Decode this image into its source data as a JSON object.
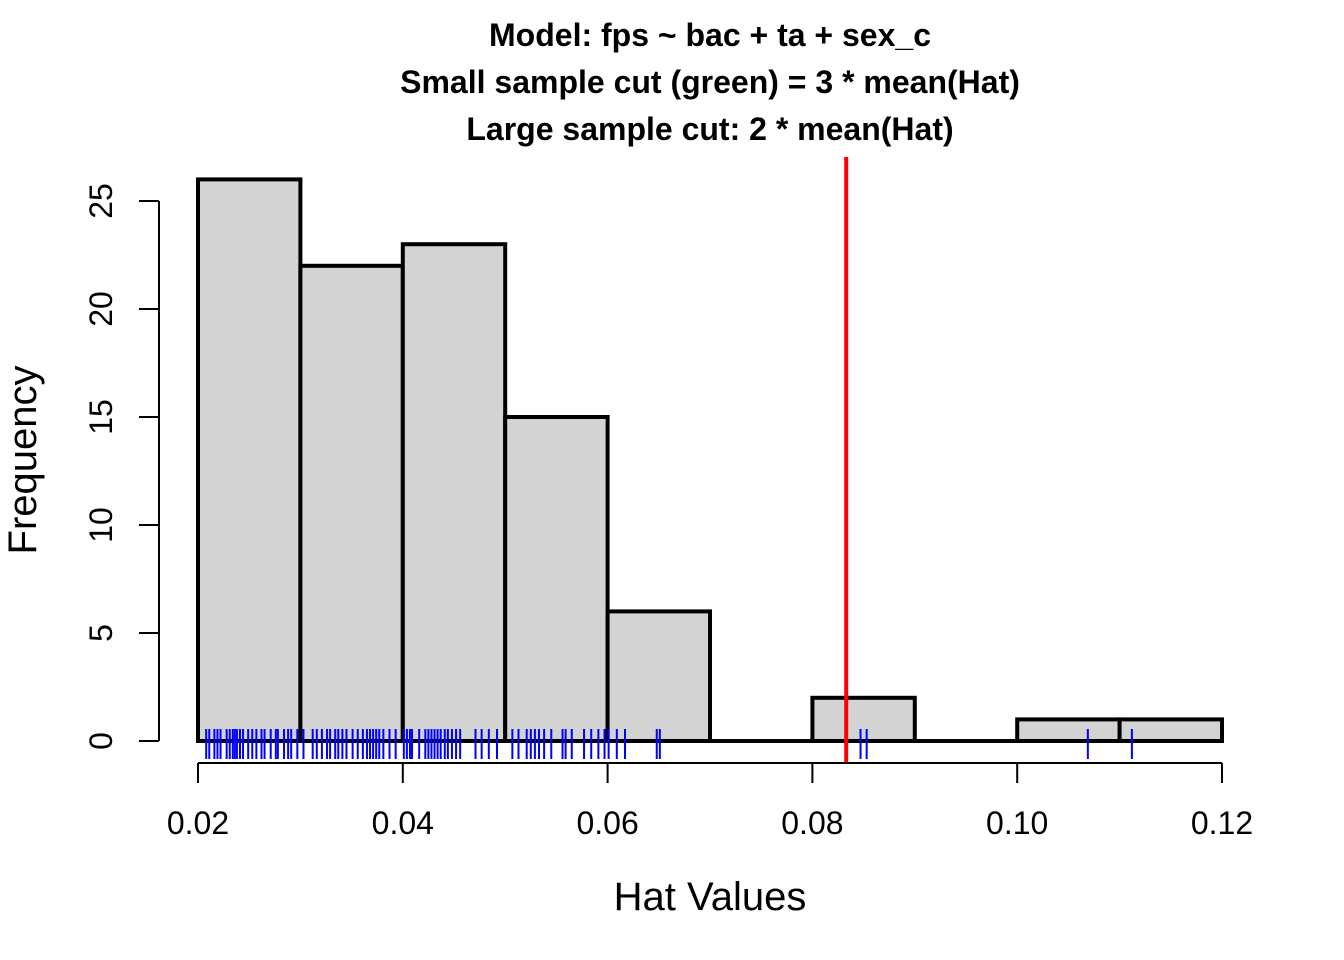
{
  "chart_data": {
    "type": "bar",
    "title_lines": [
      "Model: fps ~ bac + ta + sex_c",
      "Small sample cut (green) = 3 * mean(Hat)",
      "Large sample cut: 2 * mean(Hat)"
    ],
    "xlabel": "Hat Values",
    "ylabel": "Frequency",
    "xlim": [
      0.02,
      0.12
    ],
    "ylim": [
      0,
      26
    ],
    "x_ticks": [
      "0.02",
      "0.04",
      "0.06",
      "0.08",
      "0.10",
      "0.12"
    ],
    "y_ticks": [
      "0",
      "5",
      "10",
      "15",
      "20",
      "25"
    ],
    "bins": [
      {
        "start": 0.02,
        "end": 0.03,
        "count": 26
      },
      {
        "start": 0.03,
        "end": 0.04,
        "count": 22
      },
      {
        "start": 0.04,
        "end": 0.05,
        "count": 23
      },
      {
        "start": 0.05,
        "end": 0.06,
        "count": 15
      },
      {
        "start": 0.06,
        "end": 0.07,
        "count": 6
      },
      {
        "start": 0.07,
        "end": 0.08,
        "count": 0
      },
      {
        "start": 0.08,
        "end": 0.09,
        "count": 2
      },
      {
        "start": 0.09,
        "end": 0.1,
        "count": 0
      },
      {
        "start": 0.1,
        "end": 0.11,
        "count": 1
      },
      {
        "start": 0.11,
        "end": 0.12,
        "count": 1
      }
    ],
    "rug_values": [
      0.0208,
      0.0211,
      0.0216,
      0.0219,
      0.0222,
      0.0228,
      0.0231,
      0.0234,
      0.0236,
      0.0238,
      0.0241,
      0.0244,
      0.0249,
      0.0253,
      0.0257,
      0.0262,
      0.0265,
      0.0271,
      0.0276,
      0.0278,
      0.0284,
      0.0288,
      0.0291,
      0.0297,
      0.0303,
      0.0312,
      0.0316,
      0.0321,
      0.0326,
      0.0329,
      0.0334,
      0.0337,
      0.0341,
      0.0345,
      0.0351,
      0.0356,
      0.0361,
      0.0365,
      0.0368,
      0.0371,
      0.0374,
      0.0377,
      0.0381,
      0.0387,
      0.0393,
      0.0401,
      0.0404,
      0.0407,
      0.0409,
      0.0416,
      0.0422,
      0.0425,
      0.0428,
      0.0431,
      0.0434,
      0.0437,
      0.0441,
      0.0444,
      0.0448,
      0.0452,
      0.0456,
      0.0471,
      0.0477,
      0.0484,
      0.0492,
      0.0507,
      0.0513,
      0.0521,
      0.0525,
      0.0529,
      0.0533,
      0.0538,
      0.0545,
      0.0556,
      0.0559,
      0.0565,
      0.0577,
      0.0584,
      0.0591,
      0.0597,
      0.0601,
      0.0609,
      0.0617,
      0.0648,
      0.0651,
      0.0847,
      0.0853,
      0.1069,
      0.1112
    ],
    "cutoff_line": {
      "x": 0.0833,
      "color": "#ff0000"
    },
    "colors": {
      "bar_fill": "#d3d3d3",
      "bar_stroke": "#000000",
      "rug": "#0000ff"
    }
  }
}
